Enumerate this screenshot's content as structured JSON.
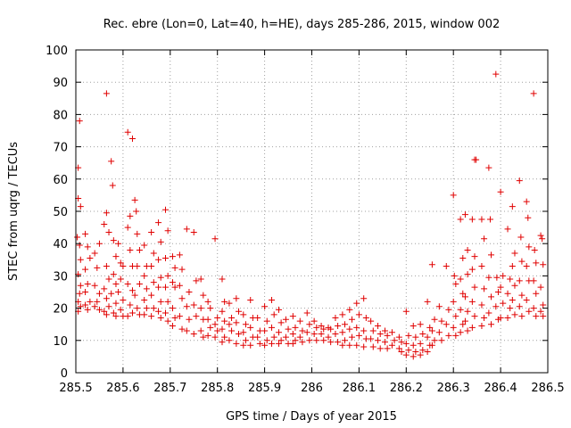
{
  "chart_data": {
    "type": "scatter",
    "title": "Rec. ebre (Lon=0, Lat=40, h=HE), days 285-286, 2015, window 002",
    "xlabel": "GPS time / Days of year 2015",
    "ylabel": "STEC from uqrg / TECUs",
    "xlim": [
      285.5,
      286.5
    ],
    "ylim": [
      0,
      100
    ],
    "xticks": [
      285.5,
      285.6,
      285.7,
      285.8,
      285.9,
      286,
      286.1,
      286.2,
      286.3,
      286.4,
      286.5
    ],
    "xtick_labels": [
      "285.5",
      "285.6",
      "285.7",
      "285.8",
      "285.9",
      "286",
      "286.1",
      "286.2",
      "286.3",
      "286.4",
      "286.5"
    ],
    "yticks": [
      0,
      10,
      20,
      30,
      40,
      50,
      60,
      70,
      80,
      90,
      100
    ],
    "ytick_labels": [
      "0",
      "10",
      "20",
      "30",
      "40",
      "50",
      "60",
      "70",
      "80",
      "90",
      "100"
    ],
    "grid": true,
    "marker": "+",
    "color": "#e00000",
    "points": [
      [
        285.505,
        63.5
      ],
      [
        285.508,
        78
      ],
      [
        285.51,
        51.5
      ],
      [
        285.505,
        54
      ],
      [
        285.503,
        42
      ],
      [
        285.508,
        39.5
      ],
      [
        285.51,
        35
      ],
      [
        285.505,
        30.5
      ],
      [
        285.51,
        27
      ],
      [
        285.508,
        24.5
      ],
      [
        285.505,
        22
      ],
      [
        285.51,
        20.5
      ],
      [
        285.505,
        19
      ],
      [
        285.52,
        43
      ],
      [
        285.525,
        39
      ],
      [
        285.53,
        35.5
      ],
      [
        285.52,
        32
      ],
      [
        285.525,
        27.5
      ],
      [
        285.52,
        25
      ],
      [
        285.53,
        22
      ],
      [
        285.52,
        21
      ],
      [
        285.525,
        19.5
      ],
      [
        285.54,
        37
      ],
      [
        285.545,
        32.5
      ],
      [
        285.55,
        40
      ],
      [
        285.54,
        27
      ],
      [
        285.55,
        24.5
      ],
      [
        285.545,
        22
      ],
      [
        285.54,
        20.5
      ],
      [
        285.55,
        19.5
      ],
      [
        285.565,
        86.5
      ],
      [
        285.565,
        49.5
      ],
      [
        285.56,
        46
      ],
      [
        285.57,
        43.5
      ],
      [
        285.565,
        33
      ],
      [
        285.57,
        29
      ],
      [
        285.56,
        26
      ],
      [
        285.565,
        23
      ],
      [
        285.57,
        20.5
      ],
      [
        285.56,
        19
      ],
      [
        285.565,
        18
      ],
      [
        285.575,
        65.5
      ],
      [
        285.578,
        58
      ],
      [
        285.58,
        41
      ],
      [
        285.585,
        36
      ],
      [
        285.58,
        30.5
      ],
      [
        285.585,
        27.5
      ],
      [
        285.575,
        24.5
      ],
      [
        285.585,
        21.5
      ],
      [
        285.58,
        18.5
      ],
      [
        285.585,
        17.5
      ],
      [
        285.59,
        40
      ],
      [
        285.595,
        34
      ],
      [
        285.6,
        33
      ],
      [
        285.595,
        29
      ],
      [
        285.59,
        25
      ],
      [
        285.6,
        22.5
      ],
      [
        285.595,
        19.5
      ],
      [
        285.6,
        17.5
      ],
      [
        285.61,
        74.5
      ],
      [
        285.615,
        48.5
      ],
      [
        285.61,
        45
      ],
      [
        285.62,
        72.5
      ],
      [
        285.615,
        38
      ],
      [
        285.62,
        33
      ],
      [
        285.61,
        27.5
      ],
      [
        285.62,
        25.5
      ],
      [
        285.615,
        21
      ],
      [
        285.62,
        18.5
      ],
      [
        285.61,
        17.5
      ],
      [
        285.625,
        53.5
      ],
      [
        285.628,
        50
      ],
      [
        285.63,
        43
      ],
      [
        285.635,
        38
      ],
      [
        285.63,
        33
      ],
      [
        285.635,
        27.5
      ],
      [
        285.625,
        24
      ],
      [
        285.63,
        20
      ],
      [
        285.635,
        18
      ],
      [
        285.645,
        39.5
      ],
      [
        285.65,
        33
      ],
      [
        285.645,
        30
      ],
      [
        285.65,
        26
      ],
      [
        285.645,
        22.5
      ],
      [
        285.65,
        20
      ],
      [
        285.645,
        18
      ],
      [
        285.66,
        43.5
      ],
      [
        285.665,
        37
      ],
      [
        285.66,
        33
      ],
      [
        285.665,
        28
      ],
      [
        285.66,
        24
      ],
      [
        285.665,
        20
      ],
      [
        285.66,
        17.5
      ],
      [
        285.675,
        46.5
      ],
      [
        285.68,
        40.5
      ],
      [
        285.675,
        35
      ],
      [
        285.68,
        29.5
      ],
      [
        285.675,
        26.5
      ],
      [
        285.68,
        22
      ],
      [
        285.675,
        19
      ],
      [
        285.68,
        17
      ],
      [
        285.69,
        50.5
      ],
      [
        285.695,
        44
      ],
      [
        285.69,
        35.5
      ],
      [
        285.695,
        30
      ],
      [
        285.69,
        26.5
      ],
      [
        285.695,
        22
      ],
      [
        285.69,
        18.5
      ],
      [
        285.695,
        16
      ],
      [
        285.705,
        36
      ],
      [
        285.71,
        32.5
      ],
      [
        285.705,
        28
      ],
      [
        285.71,
        26.5
      ],
      [
        285.705,
        20
      ],
      [
        285.71,
        17
      ],
      [
        285.705,
        14.5
      ],
      [
        285.72,
        36.5
      ],
      [
        285.725,
        32
      ],
      [
        285.72,
        27
      ],
      [
        285.725,
        23
      ],
      [
        285.72,
        17.5
      ],
      [
        285.725,
        13.5
      ],
      [
        285.735,
        44.5
      ],
      [
        285.74,
        25
      ],
      [
        285.735,
        20.5
      ],
      [
        285.74,
        16.5
      ],
      [
        285.735,
        13
      ],
      [
        285.75,
        43.5
      ],
      [
        285.755,
        28.5
      ],
      [
        285.75,
        21
      ],
      [
        285.755,
        17.5
      ],
      [
        285.75,
        12
      ],
      [
        285.765,
        29
      ],
      [
        285.77,
        24
      ],
      [
        285.765,
        20
      ],
      [
        285.77,
        16.5
      ],
      [
        285.765,
        13
      ],
      [
        285.77,
        11
      ],
      [
        285.78,
        22
      ],
      [
        285.785,
        20
      ],
      [
        285.78,
        16.5
      ],
      [
        285.785,
        14
      ],
      [
        285.78,
        11.5
      ],
      [
        285.795,
        41.5
      ],
      [
        285.8,
        17
      ],
      [
        285.795,
        15
      ],
      [
        285.8,
        13
      ],
      [
        285.795,
        11
      ],
      [
        285.81,
        29
      ],
      [
        285.815,
        22
      ],
      [
        285.81,
        19
      ],
      [
        285.815,
        16
      ],
      [
        285.81,
        13.5
      ],
      [
        285.815,
        11
      ],
      [
        285.81,
        9.5
      ],
      [
        285.825,
        21.5
      ],
      [
        285.83,
        17
      ],
      [
        285.825,
        15
      ],
      [
        285.83,
        13
      ],
      [
        285.825,
        10
      ],
      [
        285.84,
        23
      ],
      [
        285.845,
        19
      ],
      [
        285.84,
        15.5
      ],
      [
        285.845,
        12
      ],
      [
        285.84,
        9
      ],
      [
        285.855,
        18
      ],
      [
        285.86,
        15
      ],
      [
        285.855,
        12.5
      ],
      [
        285.86,
        10
      ],
      [
        285.855,
        8.5
      ],
      [
        285.87,
        22.5
      ],
      [
        285.875,
        17
      ],
      [
        285.87,
        14
      ],
      [
        285.875,
        11
      ],
      [
        285.87,
        8.5
      ],
      [
        285.885,
        17
      ],
      [
        285.89,
        13
      ],
      [
        285.885,
        11
      ],
      [
        285.89,
        9
      ],
      [
        285.9,
        20.5
      ],
      [
        285.905,
        16
      ],
      [
        285.9,
        13
      ],
      [
        285.905,
        10
      ],
      [
        285.9,
        8.5
      ],
      [
        285.915,
        22.5
      ],
      [
        285.92,
        18
      ],
      [
        285.915,
        14
      ],
      [
        285.92,
        11
      ],
      [
        285.915,
        9
      ],
      [
        285.93,
        19.5
      ],
      [
        285.935,
        15.5
      ],
      [
        285.93,
        12.5
      ],
      [
        285.935,
        10
      ],
      [
        285.93,
        9
      ],
      [
        285.945,
        16.5
      ],
      [
        285.95,
        13.5
      ],
      [
        285.945,
        11
      ],
      [
        285.95,
        9
      ],
      [
        285.96,
        17.5
      ],
      [
        285.965,
        14
      ],
      [
        285.96,
        12
      ],
      [
        285.965,
        10
      ],
      [
        285.96,
        9
      ],
      [
        285.975,
        16
      ],
      [
        285.98,
        13
      ],
      [
        285.975,
        11
      ],
      [
        285.98,
        9.5
      ],
      [
        285.99,
        18.5
      ],
      [
        285.995,
        15
      ],
      [
        285.99,
        12.5
      ],
      [
        285.995,
        10
      ],
      [
        286.005,
        16
      ],
      [
        286.01,
        14
      ],
      [
        286.005,
        12
      ],
      [
        286.01,
        10
      ],
      [
        286.02,
        14.5
      ],
      [
        286.025,
        13.5
      ],
      [
        286.02,
        12
      ],
      [
        286.025,
        10
      ],
      [
        286.035,
        14
      ],
      [
        286.04,
        13.5
      ],
      [
        286.035,
        11
      ],
      [
        286.04,
        9.5
      ],
      [
        286.05,
        17
      ],
      [
        286.055,
        14.5
      ],
      [
        286.05,
        12
      ],
      [
        286.055,
        9.5
      ],
      [
        286.065,
        18
      ],
      [
        286.07,
        15
      ],
      [
        286.065,
        12.5
      ],
      [
        286.07,
        10
      ],
      [
        286.065,
        8.5
      ],
      [
        286.08,
        19.5
      ],
      [
        286.085,
        16.5
      ],
      [
        286.08,
        13.5
      ],
      [
        286.085,
        11
      ],
      [
        286.08,
        8.5
      ],
      [
        286.095,
        21.5
      ],
      [
        286.1,
        18
      ],
      [
        286.095,
        14
      ],
      [
        286.1,
        11.5
      ],
      [
        286.095,
        8.5
      ],
      [
        286.11,
        23
      ],
      [
        286.115,
        17
      ],
      [
        286.11,
        13
      ],
      [
        286.115,
        10.5
      ],
      [
        286.11,
        8
      ],
      [
        286.125,
        16
      ],
      [
        286.13,
        13
      ],
      [
        286.125,
        10.5
      ],
      [
        286.13,
        8
      ],
      [
        286.14,
        14.5
      ],
      [
        286.145,
        12
      ],
      [
        286.14,
        10
      ],
      [
        286.145,
        7.5
      ],
      [
        286.155,
        13
      ],
      [
        286.16,
        11.5
      ],
      [
        286.155,
        9.5
      ],
      [
        286.16,
        7.5
      ],
      [
        286.17,
        12.5
      ],
      [
        286.175,
        10
      ],
      [
        286.17,
        8.5
      ],
      [
        286.185,
        11
      ],
      [
        286.19,
        9.5
      ],
      [
        286.185,
        7.5
      ],
      [
        286.19,
        6.5
      ],
      [
        286.2,
        19
      ],
      [
        286.205,
        11.5
      ],
      [
        286.2,
        9
      ],
      [
        286.205,
        7
      ],
      [
        286.2,
        5.5
      ],
      [
        286.215,
        14.5
      ],
      [
        286.22,
        11
      ],
      [
        286.215,
        8.5
      ],
      [
        286.22,
        6.5
      ],
      [
        286.215,
        5
      ],
      [
        286.23,
        15
      ],
      [
        286.235,
        12
      ],
      [
        286.23,
        9
      ],
      [
        286.235,
        7
      ],
      [
        286.23,
        5.5
      ],
      [
        286.245,
        22
      ],
      [
        286.25,
        14
      ],
      [
        286.245,
        11
      ],
      [
        286.25,
        8.5
      ],
      [
        286.245,
        6.5
      ],
      [
        286.255,
        33.5
      ],
      [
        286.26,
        16.5
      ],
      [
        286.255,
        13
      ],
      [
        286.26,
        10
      ],
      [
        286.255,
        8.5
      ],
      [
        286.27,
        20.5
      ],
      [
        286.275,
        16
      ],
      [
        286.27,
        12.5
      ],
      [
        286.275,
        10
      ],
      [
        286.285,
        33
      ],
      [
        286.29,
        19.5
      ],
      [
        286.285,
        15
      ],
      [
        286.29,
        11.5
      ],
      [
        286.3,
        55
      ],
      [
        286.302,
        30
      ],
      [
        286.305,
        27.5
      ],
      [
        286.3,
        22
      ],
      [
        286.305,
        17.5
      ],
      [
        286.3,
        14
      ],
      [
        286.305,
        11.5
      ],
      [
        286.315,
        47.5
      ],
      [
        286.32,
        35.5
      ],
      [
        286.315,
        29
      ],
      [
        286.32,
        24.5
      ],
      [
        286.315,
        19.5
      ],
      [
        286.32,
        15
      ],
      [
        286.315,
        12.5
      ],
      [
        286.325,
        49
      ],
      [
        286.33,
        38
      ],
      [
        286.33,
        30.5
      ],
      [
        286.325,
        23.5
      ],
      [
        286.33,
        19
      ],
      [
        286.325,
        16
      ],
      [
        286.33,
        13
      ],
      [
        286.345,
        66
      ],
      [
        286.348,
        66
      ],
      [
        286.34,
        47.5
      ],
      [
        286.345,
        36
      ],
      [
        286.34,
        32
      ],
      [
        286.345,
        26.5
      ],
      [
        286.34,
        22
      ],
      [
        286.345,
        17.5
      ],
      [
        286.34,
        14
      ],
      [
        286.36,
        47.5
      ],
      [
        286.365,
        41.5
      ],
      [
        286.36,
        33
      ],
      [
        286.365,
        26
      ],
      [
        286.36,
        21
      ],
      [
        286.365,
        17
      ],
      [
        286.36,
        14.5
      ],
      [
        286.375,
        63.5
      ],
      [
        286.378,
        47.5
      ],
      [
        286.38,
        36.5
      ],
      [
        286.375,
        29.5
      ],
      [
        286.38,
        23.5
      ],
      [
        286.375,
        18.5
      ],
      [
        286.38,
        15
      ],
      [
        286.39,
        92.5
      ],
      [
        286.392,
        29.5
      ],
      [
        286.395,
        25
      ],
      [
        286.39,
        20.5
      ],
      [
        286.395,
        16.5
      ],
      [
        286.4,
        56
      ],
      [
        286.405,
        30
      ],
      [
        286.4,
        26.5
      ],
      [
        286.405,
        21.5
      ],
      [
        286.4,
        17
      ],
      [
        286.415,
        44.5
      ],
      [
        286.42,
        29
      ],
      [
        286.415,
        24.5
      ],
      [
        286.42,
        20
      ],
      [
        286.415,
        17
      ],
      [
        286.425,
        51.5
      ],
      [
        286.43,
        37
      ],
      [
        286.425,
        33
      ],
      [
        286.43,
        27
      ],
      [
        286.425,
        22.5
      ],
      [
        286.43,
        18
      ],
      [
        286.44,
        59.5
      ],
      [
        286.443,
        42
      ],
      [
        286.445,
        34.5
      ],
      [
        286.44,
        28.5
      ],
      [
        286.445,
        24
      ],
      [
        286.44,
        20.5
      ],
      [
        286.445,
        17.5
      ],
      [
        286.455,
        53
      ],
      [
        286.458,
        48
      ],
      [
        286.46,
        39
      ],
      [
        286.455,
        33
      ],
      [
        286.46,
        28.5
      ],
      [
        286.455,
        22.5
      ],
      [
        286.46,
        19
      ],
      [
        286.47,
        86.5
      ],
      [
        286.472,
        38
      ],
      [
        286.475,
        34
      ],
      [
        286.47,
        28.5
      ],
      [
        286.475,
        24.5
      ],
      [
        286.47,
        20
      ],
      [
        286.475,
        17.5
      ],
      [
        286.485,
        42.5
      ],
      [
        286.488,
        41.5
      ],
      [
        286.49,
        33.5
      ],
      [
        286.485,
        26.5
      ],
      [
        286.49,
        21
      ],
      [
        286.485,
        19
      ],
      [
        286.49,
        17.5
      ]
    ]
  }
}
